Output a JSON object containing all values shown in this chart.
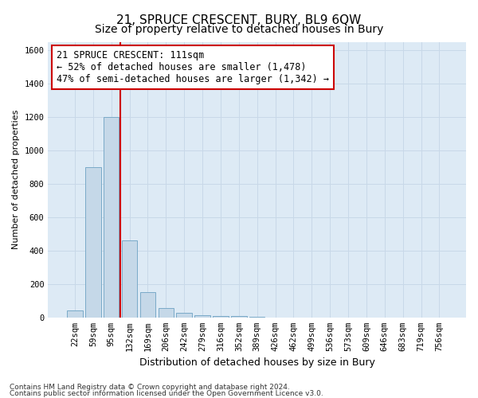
{
  "title": "21, SPRUCE CRESCENT, BURY, BL9 6QW",
  "subtitle": "Size of property relative to detached houses in Bury",
  "xlabel": "Distribution of detached houses by size in Bury",
  "ylabel": "Number of detached properties",
  "footnote1": "Contains HM Land Registry data © Crown copyright and database right 2024.",
  "footnote2": "Contains public sector information licensed under the Open Government Licence v3.0.",
  "categories": [
    "22sqm",
    "59sqm",
    "95sqm",
    "132sqm",
    "169sqm",
    "206sqm",
    "242sqm",
    "279sqm",
    "316sqm",
    "352sqm",
    "389sqm",
    "426sqm",
    "462sqm",
    "499sqm",
    "536sqm",
    "573sqm",
    "609sqm",
    "646sqm",
    "683sqm",
    "719sqm",
    "756sqm"
  ],
  "values": [
    40,
    900,
    1200,
    460,
    150,
    55,
    30,
    15,
    10,
    10,
    3,
    0,
    0,
    0,
    0,
    0,
    0,
    0,
    0,
    0,
    0
  ],
  "bar_color": "#c5d8e8",
  "bar_edge_color": "#7aaac8",
  "grid_color": "#c8d8e8",
  "background_color": "#ddeaf5",
  "annotation_box_color": "#cc0000",
  "property_line_color": "#cc0000",
  "property_line_x": 2.5,
  "property_label": "21 SPRUCE CRESCENT: 111sqm",
  "annotation_line1": "← 52% of detached houses are smaller (1,478)",
  "annotation_line2": "47% of semi-detached houses are larger (1,342) →",
  "ylim": [
    0,
    1650
  ],
  "yticks": [
    0,
    200,
    400,
    600,
    800,
    1000,
    1200,
    1400,
    1600
  ],
  "title_fontsize": 11,
  "subtitle_fontsize": 10,
  "annotation_fontsize": 8.5,
  "tick_fontsize": 7.5,
  "ylabel_fontsize": 8,
  "xlabel_fontsize": 9
}
